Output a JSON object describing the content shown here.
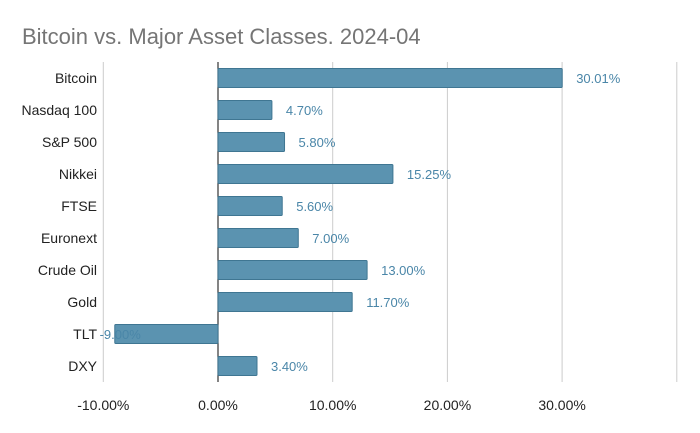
{
  "chart_data": {
    "type": "bar",
    "orientation": "horizontal",
    "title": "Bitcoin vs. Major Asset Classes. 2024-04",
    "categories": [
      "Bitcoin",
      "Nasdaq 100",
      "S&P 500",
      "Nikkei",
      "FTSE",
      "Euronext",
      "Crude Oil",
      "Gold",
      "TLT",
      "DXY"
    ],
    "values": [
      30.01,
      4.7,
      5.8,
      15.25,
      5.6,
      7.0,
      13.0,
      11.7,
      -9.0,
      3.4
    ],
    "data_labels": [
      "30.01%",
      "4.70%",
      "5.80%",
      "15.25%",
      "5.60%",
      "7.00%",
      "13.00%",
      "11.70%",
      "-9.00%",
      "3.40%"
    ],
    "x_ticks": [
      -10,
      0,
      10,
      20,
      30
    ],
    "x_tick_labels": [
      "-10.00%",
      "0.00%",
      "10.00%",
      "20.00%",
      "30.00%"
    ],
    "xlim": [
      -10,
      40
    ],
    "grid": true,
    "legend": "none",
    "colors": {
      "bar": "#5b93b0",
      "bar_stroke": "#3f7692",
      "label": "#4a86a8",
      "grid": "#cccccc",
      "zero_axis": "#333333"
    }
  }
}
